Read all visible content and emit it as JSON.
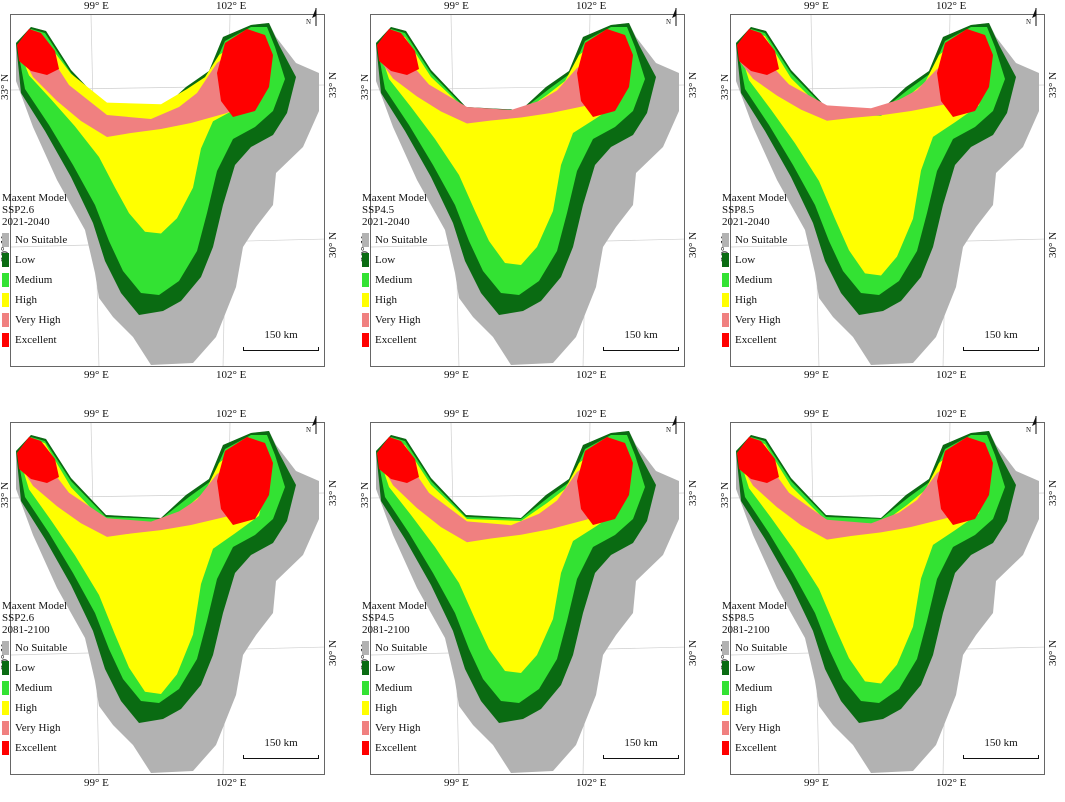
{
  "axis_labels": {
    "lon_left": "99° E",
    "lon_right": "102° E",
    "lat_top": "33° N",
    "lat_bottom": "30° N"
  },
  "legend_items": [
    {
      "label": "No Suitable",
      "color": "#b2b2b2"
    },
    {
      "label": "Low",
      "color": "#0a6b12"
    },
    {
      "label": "Medium",
      "color": "#33e233"
    },
    {
      "label": "High",
      "color": "#ffff00"
    },
    {
      "label": "Very High",
      "color": "#f08080"
    },
    {
      "label": "Excellent",
      "color": "#ff0000"
    }
  ],
  "scale_bar": "150 km",
  "north_arrow": "N",
  "panels": [
    {
      "model": "Maxent Model",
      "scenario": "SSP2.6",
      "period": "2021-2040"
    },
    {
      "model": "Maxent Model",
      "scenario": "SSP4.5",
      "period": "2021-2040"
    },
    {
      "model": "Maxent Model",
      "scenario": "SSP8.5",
      "period": "2021-2040"
    },
    {
      "model": "Maxent Model",
      "scenario": "SSP2.6",
      "period": "2081-2100"
    },
    {
      "model": "Maxent Model",
      "scenario": "SSP4.5",
      "period": "2081-2100"
    },
    {
      "model": "Maxent Model",
      "scenario": "SSP8.5",
      "period": "2081-2100"
    }
  ]
}
